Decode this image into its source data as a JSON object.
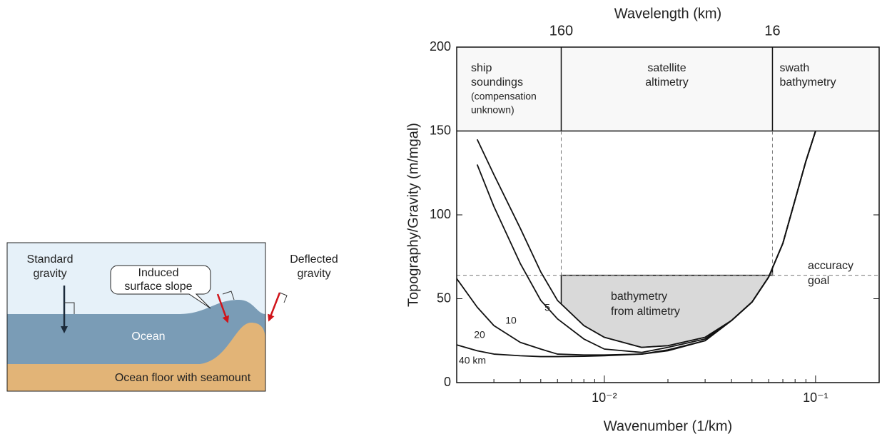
{
  "diagram": {
    "standard_gravity": [
      "Standard",
      "gravity"
    ],
    "induced_slope": [
      "Induced",
      "surface slope"
    ],
    "deflected_gravity": [
      "Deflected",
      "gravity"
    ],
    "ocean": "Ocean",
    "floor": "Ocean floor with seamount"
  },
  "chart_data": {
    "type": "line",
    "title": "Wavelength (km)",
    "x_label": "Wavenumber (1/km)",
    "y_label": "Topography/Gravity  (m/mgal)",
    "x_log": true,
    "xlim": [
      0.002,
      0.2
    ],
    "xticks": [
      {
        "value": 0.01,
        "label": "10⁻²"
      },
      {
        "value": 0.1,
        "label": "10⁻¹"
      }
    ],
    "x2lim": [
      500,
      5
    ],
    "x2ticks": [
      160,
      16
    ],
    "ylim": [
      0,
      200
    ],
    "yticks": [
      0,
      50,
      100,
      150,
      200
    ],
    "x": [
      0.002,
      0.0025,
      0.003,
      0.004,
      0.005,
      0.006,
      0.008,
      0.01,
      0.015,
      0.02,
      0.03,
      0.04,
      0.05,
      0.06,
      0.07,
      0.08,
      0.09,
      0.1
    ],
    "series": [
      {
        "name": "5",
        "color": "#111",
        "values": [
          null,
          145,
          124,
          92,
          66,
          49,
          34,
          27,
          21,
          22,
          27,
          37,
          48,
          63,
          83,
          109,
          132,
          150
        ]
      },
      {
        "name": "10",
        "color": "#111",
        "values": [
          null,
          130,
          105,
          71,
          49,
          38,
          26,
          20,
          18,
          21,
          26,
          37,
          48,
          63,
          83,
          109,
          132,
          150
        ]
      },
      {
        "name": "20",
        "color": "#111",
        "values": [
          62,
          45,
          34,
          24,
          20,
          17,
          16.5,
          16.5,
          17,
          19.5,
          25,
          37,
          48,
          63,
          83,
          109,
          132,
          150
        ]
      },
      {
        "name": "40 km",
        "color": "#111",
        "values": [
          22.5,
          19,
          17,
          16,
          15.5,
          15.5,
          15.7,
          16,
          17,
          19,
          25,
          37,
          48,
          63,
          83,
          109,
          132,
          150
        ]
      }
    ],
    "band_floor": 150,
    "accuracy_goal": 64,
    "accuracy_label": [
      "accuracy",
      "goal"
    ],
    "region_labels": [
      [
        "ship",
        "soundings",
        "(compensation",
        " unknown)"
      ],
      [
        "satellite",
        "altimetry"
      ],
      [
        "swath",
        "bathymetry"
      ]
    ],
    "shaded_label": [
      "bathymetry",
      "from altimetry"
    ]
  }
}
